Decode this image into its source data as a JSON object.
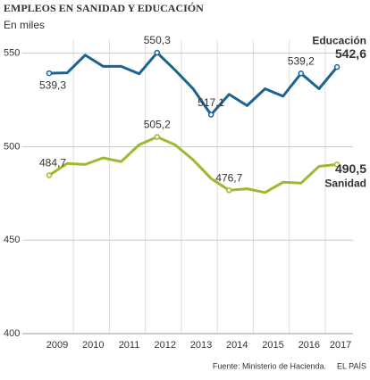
{
  "chart_data": {
    "type": "line",
    "title": "EMPLEOS EN SANIDAD Y EDUCACIÓN",
    "subtitle": "En miles",
    "source": "Fuente: Ministerio de Hacienda.",
    "publisher": "EL PAÍS",
    "categories": [
      "2009",
      null,
      "2010",
      null,
      "2011",
      null,
      "2012",
      null,
      "2013",
      null,
      "2014",
      null,
      "2015",
      null,
      "2016",
      null,
      "2017"
    ],
    "series": [
      {
        "name": "Educación",
        "color": "#1d6391",
        "values": [
          539.3,
          539.5,
          549,
          543,
          543,
          539,
          550.3,
          541,
          531,
          517.1,
          528,
          522,
          531,
          527,
          539.2,
          531,
          542.6
        ],
        "value_labels": [
          "539,3",
          null,
          null,
          null,
          null,
          null,
          "550,3",
          null,
          null,
          "517,1",
          null,
          null,
          null,
          null,
          "539,2",
          null,
          "542,6"
        ]
      },
      {
        "name": "Sanidad",
        "color": "#9bbb2e",
        "values": [
          484.7,
          491,
          490.5,
          494,
          492,
          501,
          505.2,
          501,
          493,
          483,
          476.7,
          477.5,
          475.5,
          481,
          480.5,
          489.5,
          490.5
        ],
        "value_labels": [
          "484,7",
          null,
          null,
          null,
          null,
          null,
          "505,2",
          null,
          null,
          null,
          "476,7",
          null,
          null,
          null,
          null,
          null,
          "490,5"
        ]
      }
    ],
    "ylim": [
      400,
      557
    ],
    "yticks": [
      400,
      450,
      500,
      550
    ],
    "grid": true
  }
}
